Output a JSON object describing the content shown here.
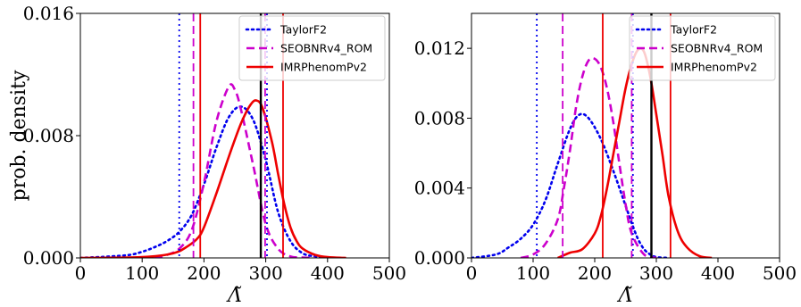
{
  "chart_data": [
    {
      "type": "line",
      "title": "",
      "xlabel": "Λ̃",
      "ylabel": "prob. density",
      "xlim": [
        0,
        500
      ],
      "ylim": [
        0,
        0.016
      ],
      "xticks": [
        0,
        100,
        200,
        300,
        400,
        500
      ],
      "xtick_labels": [
        "0",
        "100",
        "200",
        "300",
        "400",
        "500"
      ],
      "yticks": [
        0,
        0.008,
        0.016
      ],
      "ytick_labels": [
        "0.000",
        "0.008",
        "0.016"
      ],
      "grid": false,
      "legend_position": "top-right",
      "series": [
        {
          "name": "TaylorF2",
          "color": "#0000ee",
          "style": "dotted",
          "x": [
            0,
            50,
            80,
            100,
            120,
            140,
            160,
            180,
            200,
            220,
            240,
            260,
            280,
            300,
            320,
            340,
            360,
            380,
            400
          ],
          "y": [
            0,
            0.0001,
            0.0002,
            0.0004,
            0.0007,
            0.0011,
            0.0017,
            0.0028,
            0.0048,
            0.0072,
            0.0092,
            0.0099,
            0.009,
            0.0064,
            0.003,
            0.0011,
            0.0003,
            0.0001,
            0
          ]
        },
        {
          "name": "SEOBNRv4_ROM",
          "color": "#cc00cc",
          "style": "dashed",
          "x": [
            120,
            140,
            160,
            180,
            200,
            220,
            240,
            250,
            260,
            280,
            300,
            320,
            340,
            360,
            380
          ],
          "y": [
            0,
            0.0002,
            0.0006,
            0.0018,
            0.0049,
            0.0089,
            0.0112,
            0.011,
            0.0097,
            0.006,
            0.0022,
            0.0006,
            0.0001,
            3e-05,
            0
          ]
        },
        {
          "name": "IMRPhenomPv2",
          "color": "#ee0000",
          "style": "solid",
          "x": [
            0,
            100,
            150,
            175,
            190,
            200,
            220,
            240,
            260,
            275,
            285,
            295,
            310,
            320,
            330,
            340,
            350,
            360,
            380,
            400,
            430
          ],
          "y": [
            0,
            5e-05,
            0.0003,
            0.0008,
            0.0013,
            0.002,
            0.0042,
            0.0066,
            0.0088,
            0.01,
            0.0103,
            0.0098,
            0.0076,
            0.0055,
            0.0035,
            0.002,
            0.0011,
            0.0006,
            0.0002,
            5e-05,
            0
          ]
        }
      ],
      "vlines": [
        {
          "x": 160,
          "color": "#0000ee",
          "style": "dotted"
        },
        {
          "x": 302,
          "color": "#0000ee",
          "style": "dotted"
        },
        {
          "x": 183,
          "color": "#cc00cc",
          "style": "dashed"
        },
        {
          "x": 299,
          "color": "#cc00cc",
          "style": "dashed"
        },
        {
          "x": 194,
          "color": "#ee0000",
          "style": "solid"
        },
        {
          "x": 328,
          "color": "#ee0000",
          "style": "solid"
        },
        {
          "x": 292,
          "color": "#000000",
          "style": "solid"
        }
      ]
    },
    {
      "type": "line",
      "title": "",
      "xlabel": "Λ̃",
      "ylabel": "",
      "xlim": [
        0,
        500
      ],
      "ylim": [
        0,
        0.014
      ],
      "xticks": [
        0,
        100,
        200,
        300,
        400,
        500
      ],
      "xtick_labels": [
        "0",
        "100",
        "200",
        "300",
        "400",
        "500"
      ],
      "yticks": [
        0,
        0.004,
        0.008,
        0.012
      ],
      "ytick_labels": [
        "0.000",
        "0.004",
        "0.008",
        "0.012"
      ],
      "grid": false,
      "legend_position": "top-right",
      "series": [
        {
          "name": "TaylorF2",
          "color": "#0000ee",
          "style": "dotted",
          "x": [
            0,
            40,
            60,
            80,
            100,
            120,
            140,
            160,
            175,
            190,
            210,
            230,
            250,
            260,
            270,
            280,
            290,
            300,
            320
          ],
          "y": [
            0,
            0.0002,
            0.0006,
            0.0011,
            0.0019,
            0.0033,
            0.0054,
            0.0074,
            0.0082,
            0.008,
            0.0068,
            0.005,
            0.003,
            0.002,
            0.0011,
            0.0005,
            0.0002,
            5e-05,
            0
          ]
        },
        {
          "name": "SEOBNRv4_ROM",
          "color": "#cc00cc",
          "style": "dashed",
          "x": [
            80,
            100,
            120,
            140,
            150,
            160,
            170,
            180,
            190,
            200,
            210,
            220,
            230,
            240,
            250,
            260,
            280,
            300
          ],
          "y": [
            0,
            0.0002,
            0.0008,
            0.0022,
            0.004,
            0.0062,
            0.0087,
            0.0104,
            0.0113,
            0.0114,
            0.0109,
            0.0097,
            0.0078,
            0.0054,
            0.0031,
            0.0014,
            0.0002,
            0
          ]
        },
        {
          "name": "IMRPhenomPv2",
          "color": "#ee0000",
          "style": "solid",
          "x": [
            140,
            160,
            180,
            200,
            210,
            220,
            230,
            240,
            250,
            260,
            270,
            280,
            290,
            300,
            310,
            320,
            335,
            350,
            370,
            390
          ],
          "y": [
            0,
            0.0003,
            0.0005,
            0.0014,
            0.0024,
            0.004,
            0.0059,
            0.0078,
            0.0097,
            0.0111,
            0.0119,
            0.0118,
            0.0104,
            0.0082,
            0.0059,
            0.0035,
            0.0015,
            0.0006,
            0.0001,
            0
          ]
        }
      ],
      "vlines": [
        {
          "x": 106,
          "color": "#0000ee",
          "style": "dotted"
        },
        {
          "x": 262,
          "color": "#0000ee",
          "style": "dotted"
        },
        {
          "x": 148,
          "color": "#cc00cc",
          "style": "dashed"
        },
        {
          "x": 260,
          "color": "#cc00cc",
          "style": "dashed"
        },
        {
          "x": 213,
          "color": "#ee0000",
          "style": "solid"
        },
        {
          "x": 323,
          "color": "#ee0000",
          "style": "solid"
        },
        {
          "x": 292,
          "color": "#000000",
          "style": "solid"
        }
      ]
    }
  ]
}
